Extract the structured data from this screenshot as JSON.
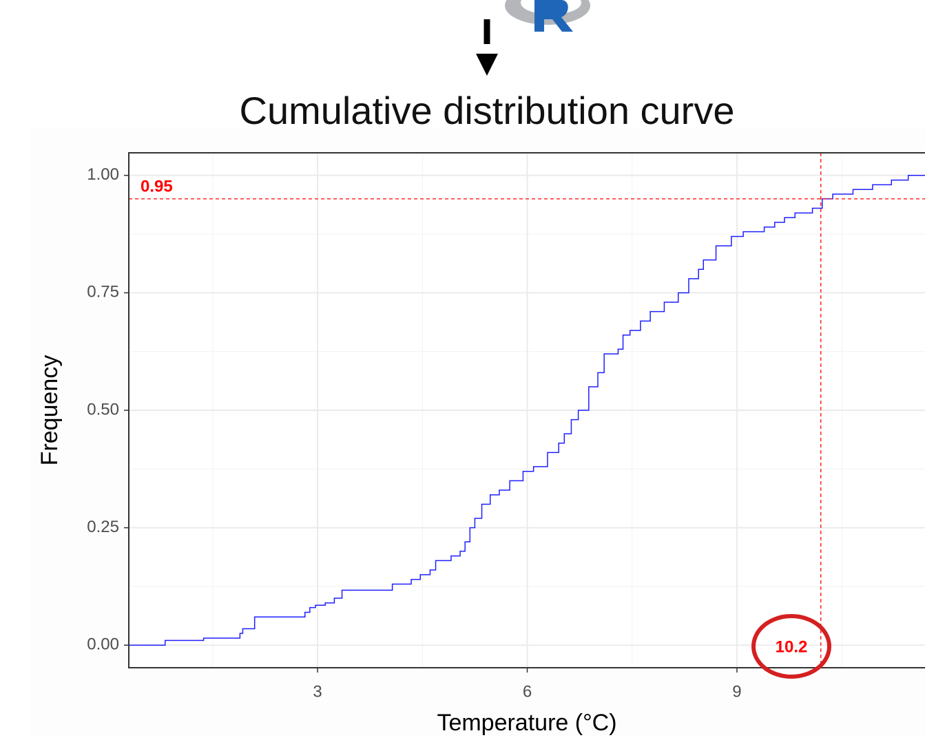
{
  "chart_data": {
    "type": "step",
    "title": "Cumulative distribution curve",
    "x_label": "Temperature (°C)",
    "y_label": "Frequency",
    "x": [
      0.3,
      0.82,
      1.37,
      1.89,
      1.93,
      2.1,
      2.82,
      2.89,
      2.97,
      3.11,
      3.24,
      3.35,
      4.07,
      4.34,
      4.47,
      4.61,
      4.69,
      4.91,
      5.04,
      5.11,
      5.18,
      5.25,
      5.35,
      5.47,
      5.6,
      5.75,
      5.94,
      6.09,
      6.29,
      6.45,
      6.53,
      6.63,
      6.73,
      6.88,
      7.01,
      7.1,
      7.3,
      7.37,
      7.47,
      7.62,
      7.76,
      7.96,
      8.16,
      8.31,
      8.45,
      8.52,
      8.7,
      8.92,
      9.09,
      9.39,
      9.54,
      9.68,
      9.83,
      10.08,
      10.22,
      10.37,
      10.66,
      10.94,
      11.21,
      11.45,
      11.69
    ],
    "values": [
      0,
      0.01,
      0.015,
      0.025,
      0.035,
      0.06,
      0.07,
      0.08,
      0.085,
      0.09,
      0.1,
      0.117,
      0.13,
      0.14,
      0.15,
      0.16,
      0.18,
      0.19,
      0.2,
      0.22,
      0.25,
      0.27,
      0.3,
      0.32,
      0.33,
      0.35,
      0.37,
      0.38,
      0.41,
      0.43,
      0.45,
      0.48,
      0.5,
      0.55,
      0.58,
      0.62,
      0.63,
      0.66,
      0.67,
      0.69,
      0.71,
      0.73,
      0.75,
      0.78,
      0.8,
      0.82,
      0.85,
      0.87,
      0.88,
      0.89,
      0.9,
      0.91,
      0.92,
      0.93,
      0.95,
      0.96,
      0.97,
      0.98,
      0.99,
      1.0,
      1.0
    ],
    "color": "#1f1fff",
    "xlim": [
      0.3,
      11.69
    ],
    "ylim": [
      -0.048,
      1.048
    ],
    "xticks": [
      3,
      6,
      9
    ],
    "yticks": [
      {
        "value": 0,
        "label": "0.00"
      },
      {
        "value": 0.25,
        "label": "0.25"
      },
      {
        "value": 0.5,
        "label": "0.50"
      },
      {
        "value": 0.75,
        "label": "0.75"
      },
      {
        "value": 1,
        "label": "1.00"
      }
    ],
    "xminor": [
      1.5,
      4.5,
      7.5,
      10.5
    ],
    "yminor": [
      0.125,
      0.375,
      0.625,
      0.875
    ],
    "grid": true,
    "hline": 0.95,
    "vline": 10.2,
    "reference_color": "#ff0000"
  }
}
